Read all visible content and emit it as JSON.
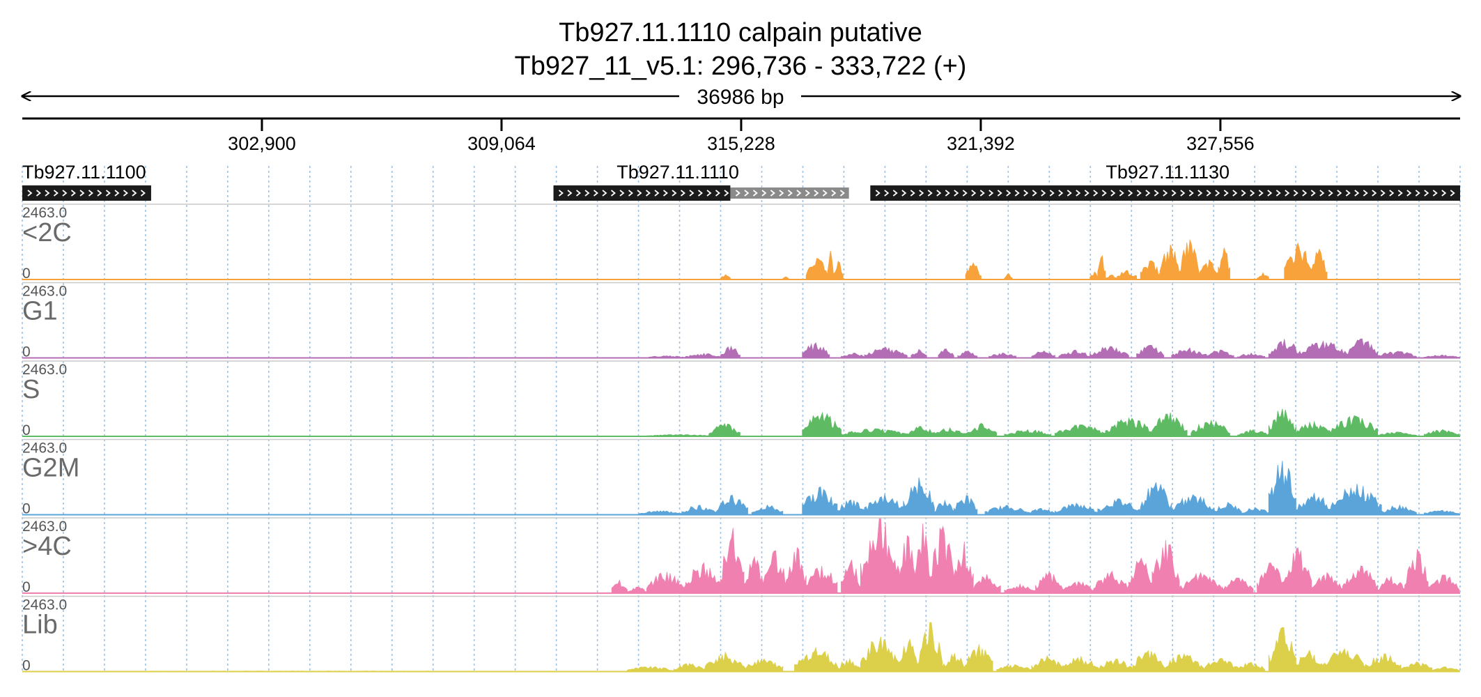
{
  "chart_data": {
    "type": "area",
    "title": "Tb927.11.1110  calpain  putative",
    "subtitle": "Tb927_11_v5.1: 296,736 - 333,722 (+)",
    "span_label": "36986 bp",
    "xlim": [
      296736,
      333722
    ],
    "ticks": [
      {
        "pos": 302900,
        "label": "302,900"
      },
      {
        "pos": 309064,
        "label": "309,064"
      },
      {
        "pos": 315228,
        "label": "315,228"
      },
      {
        "pos": 321392,
        "label": "321,392"
      },
      {
        "pos": 327556,
        "label": "327,556"
      }
    ],
    "genes": [
      {
        "name": "Tb927.11.1100",
        "start": 296736,
        "end": 300050,
        "strand": "+",
        "label_pos": 296736,
        "label_anchor": "start"
      },
      {
        "name": "Tb927.11.1110",
        "start": 310400,
        "end": 314950,
        "strand": "+",
        "utr_end": 318000,
        "label_pos": 313600,
        "label_anchor": "middle"
      },
      {
        "name": "Tb927.11.1130",
        "start": 318550,
        "end": 333722,
        "strand": "+",
        "label_pos": 326200,
        "label_anchor": "middle"
      }
    ],
    "ylim": [
      0,
      2463.0
    ],
    "y_max_label": "2463.0",
    "y_min_label": "0",
    "grid": true,
    "tracks": [
      {
        "name": "<2C",
        "color": "#f7a23a",
        "peaks": [
          [
            296900,
            298000,
            15
          ],
          [
            298000,
            308500,
            12
          ],
          [
            309500,
            310500,
            10
          ],
          [
            314700,
            314950,
            160
          ],
          [
            316300,
            316450,
            90
          ],
          [
            316900,
            317450,
            700
          ],
          [
            317450,
            317600,
            950
          ],
          [
            317600,
            317850,
            600
          ],
          [
            321000,
            321400,
            550
          ],
          [
            322000,
            322200,
            180
          ],
          [
            324200,
            324400,
            250
          ],
          [
            324400,
            324600,
            780
          ],
          [
            324600,
            324900,
            150
          ],
          [
            324900,
            325400,
            300
          ],
          [
            325500,
            326000,
            620
          ],
          [
            326000,
            326500,
            1150
          ],
          [
            326500,
            327000,
            1300
          ],
          [
            327000,
            327500,
            650
          ],
          [
            327500,
            327800,
            1050
          ],
          [
            328500,
            328800,
            220
          ],
          [
            329200,
            329900,
            1200
          ],
          [
            329900,
            330300,
            1000
          ]
        ]
      },
      {
        "name": "G1",
        "color": "#b36db5",
        "peaks": [
          [
            312800,
            313800,
            70
          ],
          [
            313800,
            314700,
            150
          ],
          [
            314700,
            315200,
            380
          ],
          [
            316800,
            317500,
            500
          ],
          [
            317800,
            318400,
            160
          ],
          [
            318400,
            319500,
            350
          ],
          [
            319600,
            320000,
            280
          ],
          [
            320300,
            320700,
            300
          ],
          [
            320800,
            321300,
            230
          ],
          [
            321600,
            322300,
            160
          ],
          [
            322700,
            323300,
            230
          ],
          [
            323400,
            324200,
            260
          ],
          [
            324200,
            325200,
            380
          ],
          [
            325400,
            326100,
            420
          ],
          [
            326300,
            327200,
            330
          ],
          [
            327200,
            327900,
            260
          ],
          [
            328000,
            328700,
            160
          ],
          [
            328800,
            329600,
            620
          ],
          [
            329600,
            330800,
            550
          ],
          [
            330800,
            331600,
            630
          ],
          [
            331600,
            332600,
            220
          ],
          [
            332800,
            333700,
            100
          ]
        ]
      },
      {
        "name": "S",
        "color": "#5ebb64",
        "peaks": [
          [
            312800,
            314500,
            60
          ],
          [
            314400,
            315200,
            420
          ],
          [
            316800,
            317800,
            780
          ],
          [
            317800,
            319500,
            250
          ],
          [
            319500,
            320200,
            330
          ],
          [
            320200,
            321000,
            280
          ],
          [
            321000,
            321800,
            430
          ],
          [
            322000,
            323200,
            220
          ],
          [
            323300,
            324600,
            380
          ],
          [
            324600,
            325800,
            600
          ],
          [
            325800,
            326700,
            780
          ],
          [
            326800,
            327800,
            520
          ],
          [
            328000,
            328800,
            220
          ],
          [
            328800,
            329500,
            910
          ],
          [
            329500,
            330400,
            480
          ],
          [
            330400,
            331600,
            680
          ],
          [
            331600,
            332600,
            140
          ],
          [
            332800,
            333700,
            220
          ]
        ]
      },
      {
        "name": "G2M",
        "color": "#5aa4da",
        "peaks": [
          [
            312600,
            313700,
            130
          ],
          [
            313700,
            314600,
            320
          ],
          [
            314600,
            315400,
            650
          ],
          [
            315500,
            316300,
            320
          ],
          [
            316800,
            317700,
            920
          ],
          [
            317700,
            318400,
            490
          ],
          [
            318400,
            319400,
            680
          ],
          [
            319400,
            320200,
            1230
          ],
          [
            320200,
            320700,
            470
          ],
          [
            320700,
            321300,
            640
          ],
          [
            321500,
            322600,
            310
          ],
          [
            322600,
            323300,
            210
          ],
          [
            323300,
            324400,
            380
          ],
          [
            324400,
            325500,
            530
          ],
          [
            325500,
            326300,
            1070
          ],
          [
            326300,
            327400,
            660
          ],
          [
            327400,
            328100,
            410
          ],
          [
            328100,
            328800,
            240
          ],
          [
            328800,
            329500,
            1780
          ],
          [
            329500,
            330400,
            720
          ],
          [
            330400,
            331700,
            1020
          ],
          [
            331700,
            332600,
            320
          ],
          [
            332800,
            333700,
            150
          ]
        ]
      },
      {
        "name": ">4C",
        "color": "#f080b0",
        "peaks": [
          [
            311900,
            312300,
            430
          ],
          [
            312300,
            312800,
            200
          ],
          [
            312800,
            313800,
            700
          ],
          [
            313800,
            314700,
            1000
          ],
          [
            314700,
            315300,
            2150
          ],
          [
            315300,
            315800,
            1200
          ],
          [
            315800,
            316400,
            1400
          ],
          [
            316400,
            316900,
            1500
          ],
          [
            316900,
            317700,
            900
          ],
          [
            317800,
            318300,
            1100
          ],
          [
            318300,
            319300,
            2463
          ],
          [
            319300,
            319700,
            1900
          ],
          [
            319700,
            320100,
            2300
          ],
          [
            320100,
            320700,
            2200
          ],
          [
            320700,
            321200,
            1700
          ],
          [
            321200,
            321900,
            620
          ],
          [
            322000,
            322800,
            300
          ],
          [
            322800,
            323500,
            700
          ],
          [
            323500,
            324300,
            380
          ],
          [
            324300,
            325200,
            720
          ],
          [
            325200,
            325800,
            1150
          ],
          [
            325800,
            326500,
            1750
          ],
          [
            326500,
            327600,
            680
          ],
          [
            327600,
            328400,
            500
          ],
          [
            328500,
            329200,
            1000
          ],
          [
            329200,
            329900,
            1500
          ],
          [
            329900,
            330700,
            680
          ],
          [
            330700,
            331600,
            900
          ],
          [
            331600,
            332300,
            560
          ],
          [
            332300,
            332900,
            1450
          ],
          [
            332900,
            333700,
            600
          ]
        ]
      },
      {
        "name": "Lib",
        "color": "#dcd04a",
        "peaks": [
          [
            296900,
            311800,
            20
          ],
          [
            312300,
            313500,
            170
          ],
          [
            313500,
            314300,
            270
          ],
          [
            314300,
            315300,
            640
          ],
          [
            315300,
            316300,
            420
          ],
          [
            316600,
            317700,
            790
          ],
          [
            317700,
            318300,
            420
          ],
          [
            318300,
            319300,
            1150
          ],
          [
            319300,
            319800,
            1060
          ],
          [
            319800,
            320400,
            1620
          ],
          [
            320400,
            321000,
            600
          ],
          [
            321000,
            321700,
            900
          ],
          [
            321800,
            322700,
            230
          ],
          [
            322700,
            323500,
            520
          ],
          [
            323500,
            324400,
            500
          ],
          [
            324400,
            325300,
            420
          ],
          [
            325300,
            326100,
            690
          ],
          [
            326100,
            327100,
            580
          ],
          [
            327100,
            328000,
            440
          ],
          [
            328000,
            328700,
            310
          ],
          [
            328800,
            329500,
            1460
          ],
          [
            329500,
            330200,
            700
          ],
          [
            330200,
            331300,
            750
          ],
          [
            331300,
            332200,
            590
          ],
          [
            332200,
            333000,
            320
          ],
          [
            333000,
            333700,
            160
          ]
        ]
      }
    ]
  }
}
